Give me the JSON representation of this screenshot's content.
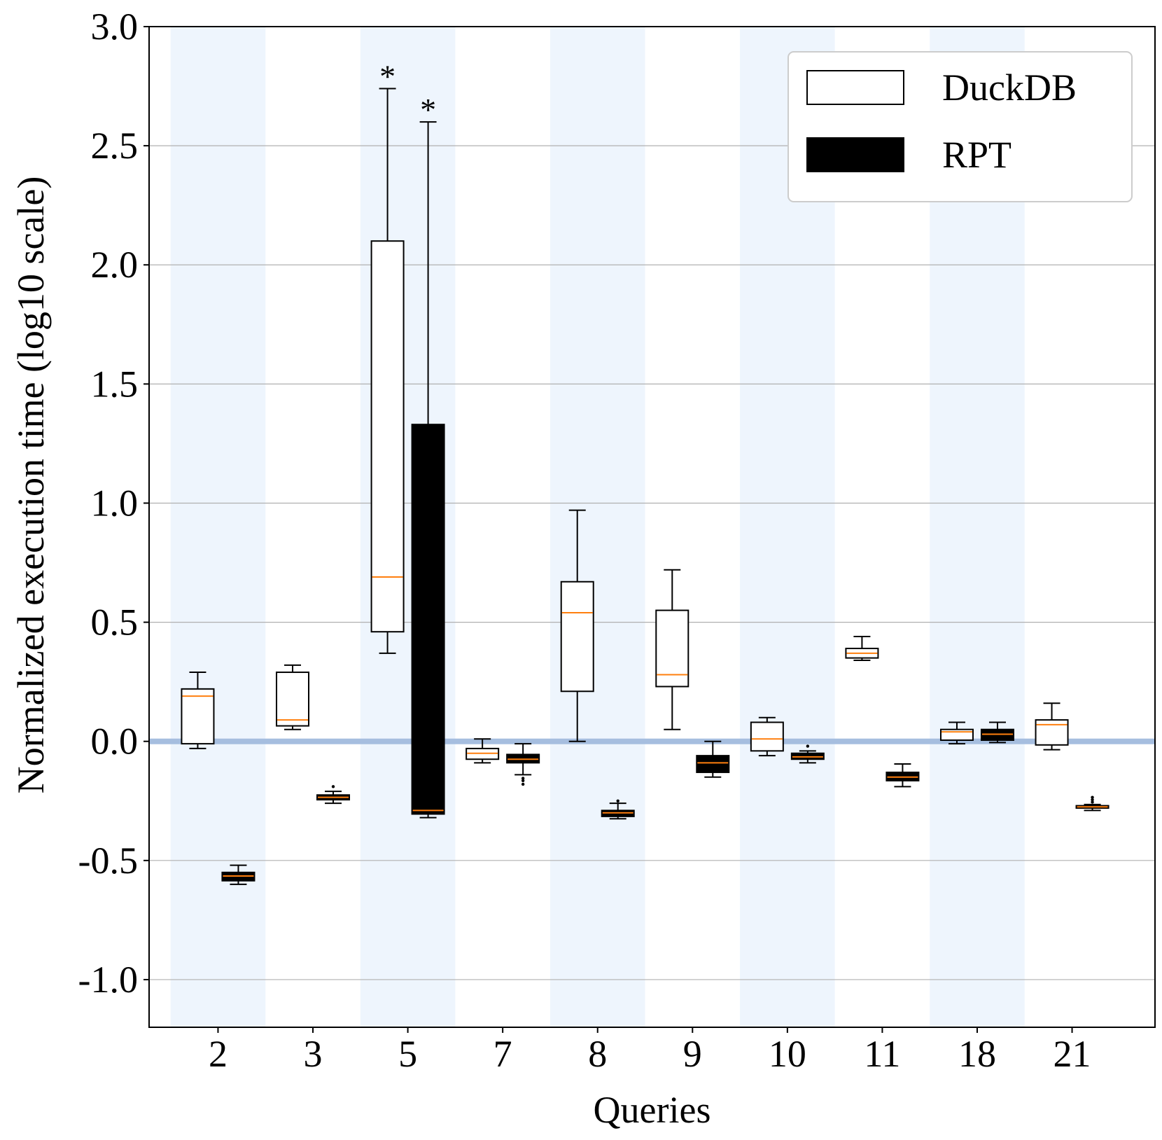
{
  "chart_data": {
    "type": "boxplot",
    "xlabel": "Queries",
    "ylabel": "Normalized execution time (log10 scale)",
    "ylim": [
      -1.2,
      3.0
    ],
    "yticks": [
      3.0,
      2.5,
      2.0,
      1.5,
      1.0,
      0.5,
      0.0,
      -0.5,
      -1.0
    ],
    "ytick_labels": [
      "3.0",
      "2.5",
      "2.0",
      "1.5",
      "1.0",
      "0.5",
      "0.0",
      "-0.5",
      "-1.0"
    ],
    "grid": "horizontal",
    "reference_line": 0.0,
    "categories": [
      "2",
      "3",
      "5",
      "7",
      "8",
      "9",
      "10",
      "11",
      "18",
      "21"
    ],
    "highlighted_category": "5",
    "highlight_color": "#ff0000",
    "shaded_categories": [
      "2",
      "5",
      "8",
      "10",
      "18"
    ],
    "legend": {
      "position": "top-right",
      "entries": [
        "DuckDB",
        "RPT"
      ]
    },
    "annotations": [
      {
        "text": "*",
        "category": "5",
        "series": "DuckDB"
      },
      {
        "text": "*",
        "category": "5",
        "series": "RPT"
      }
    ],
    "series": [
      {
        "name": "DuckDB",
        "fill": "#ffffff",
        "boxes": [
          {
            "category": "2",
            "whislo": -0.03,
            "q1": -0.01,
            "med": 0.19,
            "q3": 0.22,
            "whishi": 0.29,
            "fliers": []
          },
          {
            "category": "3",
            "whislo": 0.05,
            "q1": 0.065,
            "med": 0.09,
            "q3": 0.29,
            "whishi": 0.32,
            "fliers": []
          },
          {
            "category": "5",
            "whislo": 0.37,
            "q1": 0.46,
            "med": 0.69,
            "q3": 2.1,
            "whishi": 2.74,
            "fliers": []
          },
          {
            "category": "7",
            "whislo": -0.09,
            "q1": -0.075,
            "med": -0.05,
            "q3": -0.03,
            "whishi": 0.01,
            "fliers": []
          },
          {
            "category": "8",
            "whislo": 0.0,
            "q1": 0.21,
            "med": 0.54,
            "q3": 0.67,
            "whishi": 0.97,
            "fliers": []
          },
          {
            "category": "9",
            "whislo": 0.05,
            "q1": 0.23,
            "med": 0.28,
            "q3": 0.55,
            "whishi": 0.72,
            "fliers": []
          },
          {
            "category": "10",
            "whislo": -0.06,
            "q1": -0.04,
            "med": 0.01,
            "q3": 0.08,
            "whishi": 0.1,
            "fliers": []
          },
          {
            "category": "11",
            "whislo": 0.34,
            "q1": 0.35,
            "med": 0.37,
            "q3": 0.39,
            "whishi": 0.44,
            "fliers": []
          },
          {
            "category": "18",
            "whislo": -0.01,
            "q1": 0.005,
            "med": 0.04,
            "q3": 0.05,
            "whishi": 0.08,
            "fliers": []
          },
          {
            "category": "21",
            "whislo": -0.035,
            "q1": -0.015,
            "med": 0.07,
            "q3": 0.09,
            "whishi": 0.16,
            "fliers": []
          }
        ]
      },
      {
        "name": "RPT",
        "fill": "#000000",
        "boxes": [
          {
            "category": "2",
            "whislo": -0.6,
            "q1": -0.585,
            "med": -0.565,
            "q3": -0.55,
            "whishi": -0.52,
            "fliers": []
          },
          {
            "category": "3",
            "whislo": -0.26,
            "q1": -0.245,
            "med": -0.235,
            "q3": -0.225,
            "whishi": -0.21,
            "fliers": [
              -0.19
            ]
          },
          {
            "category": "5",
            "whislo": -0.32,
            "q1": -0.305,
            "med": -0.29,
            "q3": 1.33,
            "whishi": 2.6,
            "fliers": []
          },
          {
            "category": "7",
            "whislo": -0.14,
            "q1": -0.09,
            "med": -0.075,
            "q3": -0.055,
            "whishi": -0.01,
            "fliers": [
              -0.155,
              -0.165,
              -0.18
            ]
          },
          {
            "category": "8",
            "whislo": -0.325,
            "q1": -0.315,
            "med": -0.3,
            "q3": -0.29,
            "whishi": -0.26,
            "fliers": [
              -0.25
            ]
          },
          {
            "category": "9",
            "whislo": -0.15,
            "q1": -0.13,
            "med": -0.09,
            "q3": -0.06,
            "whishi": 0.0,
            "fliers": []
          },
          {
            "category": "10",
            "whislo": -0.09,
            "q1": -0.075,
            "med": -0.065,
            "q3": -0.05,
            "whishi": -0.04,
            "fliers": [
              -0.02
            ]
          },
          {
            "category": "11",
            "whislo": -0.19,
            "q1": -0.165,
            "med": -0.15,
            "q3": -0.13,
            "whishi": -0.095,
            "fliers": []
          },
          {
            "category": "18",
            "whislo": -0.005,
            "q1": 0.005,
            "med": 0.03,
            "q3": 0.05,
            "whishi": 0.08,
            "fliers": []
          },
          {
            "category": "21",
            "whislo": -0.29,
            "q1": -0.28,
            "med": -0.275,
            "q3": -0.27,
            "whishi": -0.265,
            "fliers": [
              -0.255,
              -0.245,
              -0.235
            ]
          }
        ]
      }
    ]
  }
}
